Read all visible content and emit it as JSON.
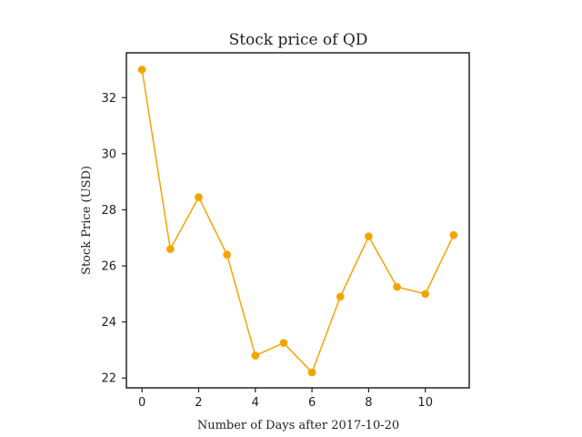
{
  "chart_data": {
    "type": "line",
    "title": "Stock price of QD",
    "xlabel": "Number of Days after 2017-10-20",
    "ylabel": "Stock Price (USD)",
    "x": [
      0,
      1,
      2,
      3,
      4,
      5,
      6,
      7,
      8,
      9,
      10,
      11
    ],
    "series": [
      {
        "values": [
          33.0,
          26.6,
          28.45,
          26.4,
          22.8,
          23.25,
          22.2,
          24.9,
          27.05,
          25.25,
          25.0,
          27.1
        ],
        "color": "#f5a300"
      }
    ],
    "xlim": [
      -0.55,
      11.55
    ],
    "ylim": [
      21.65,
      33.6
    ],
    "xticks": [
      0,
      2,
      4,
      6,
      8,
      10
    ],
    "yticks": [
      22,
      24,
      26,
      28,
      30,
      32
    ],
    "grid": false,
    "legend": "none"
  }
}
